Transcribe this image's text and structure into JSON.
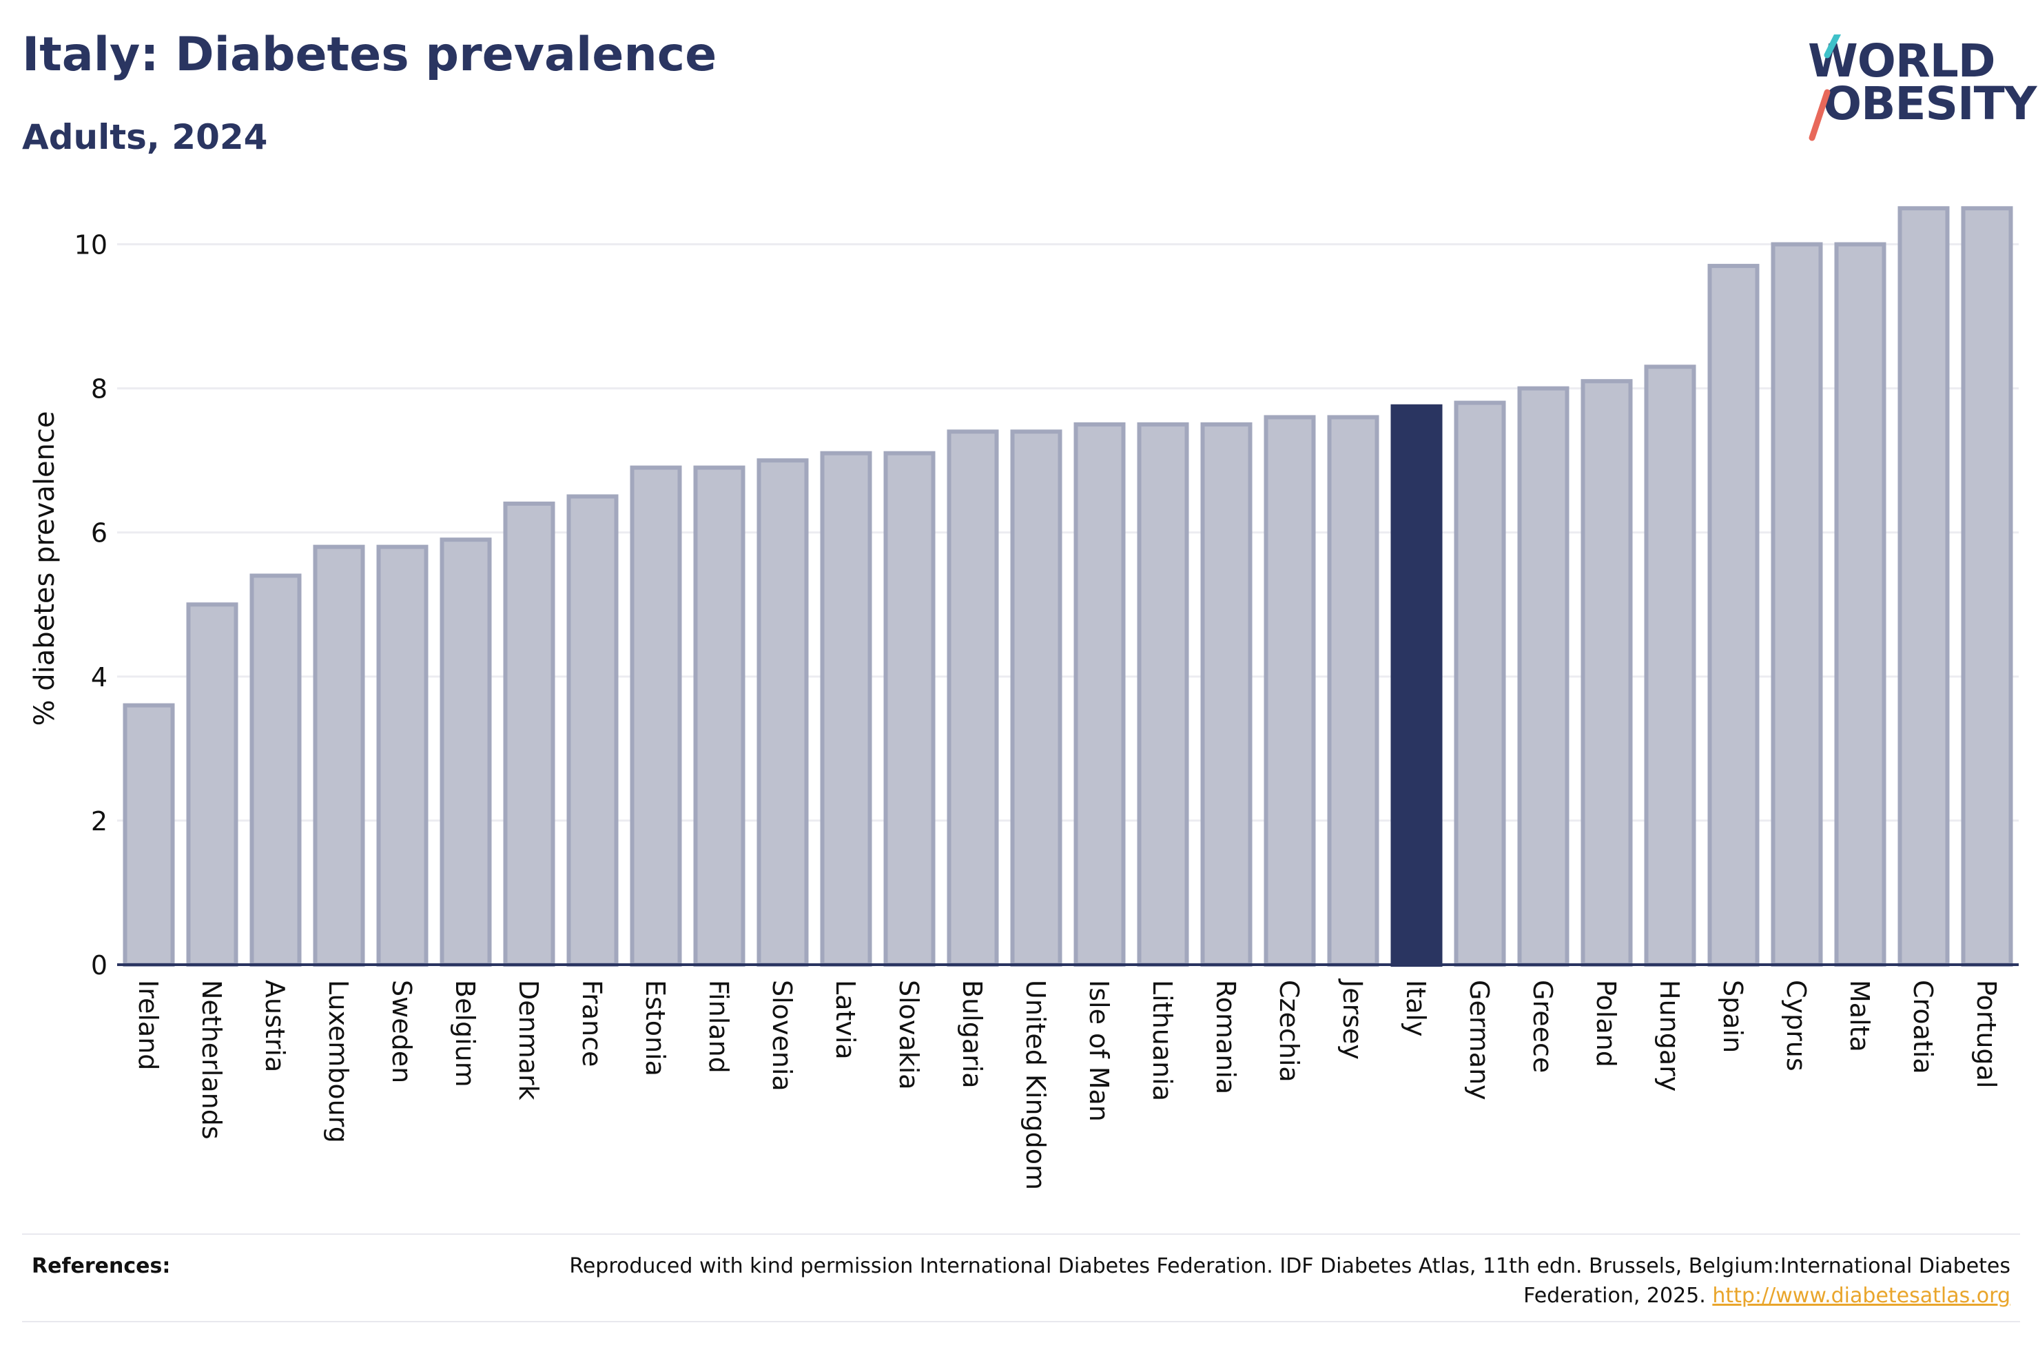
{
  "header": {
    "title": "Italy: Diabetes prevalence",
    "subtitle": "Adults, 2024"
  },
  "logo": {
    "line1": "WORLD",
    "line2": "OBESITY",
    "accent_colors": [
      "#3fc1c9",
      "#e8685a"
    ]
  },
  "chart_data": {
    "type": "bar",
    "categories": [
      "Ireland",
      "Netherlands",
      "Austria",
      "Luxembourg",
      "Sweden",
      "Belgium",
      "Denmark",
      "France",
      "Estonia",
      "Finland",
      "Slovenia",
      "Latvia",
      "Slovakia",
      "Bulgaria",
      "United Kingdom",
      "Isle of Man",
      "Lithuania",
      "Romania",
      "Czechia",
      "Jersey",
      "Italy",
      "Germany",
      "Greece",
      "Poland",
      "Hungary",
      "Spain",
      "Cyprus",
      "Malta",
      "Croatia",
      "Portugal"
    ],
    "values": [
      3.6,
      5.0,
      5.4,
      5.8,
      5.8,
      5.9,
      6.4,
      6.5,
      6.9,
      6.9,
      7.0,
      7.1,
      7.1,
      7.4,
      7.4,
      7.5,
      7.5,
      7.5,
      7.6,
      7.6,
      7.75,
      7.8,
      8.0,
      8.1,
      8.3,
      9.7,
      10.0,
      10.0,
      10.5,
      10.5
    ],
    "highlight": "Italy",
    "ylabel": "% diabetes prevalence",
    "xlabel": "",
    "ylim": [
      0,
      11
    ],
    "yticks": [
      0,
      2,
      4,
      6,
      8,
      10
    ],
    "grid": true,
    "colors": {
      "bar_fill": "#bec1cf",
      "bar_stroke": "#a2a7bd",
      "highlight_fill": "#2a3561",
      "grid": "#ececf1",
      "axis": "#2a3561"
    }
  },
  "references": {
    "label": "References:",
    "text": "Reproduced with kind permission International Diabetes Federation. IDF Diabetes Atlas, 11th edn. Brussels, Belgium:International Diabetes Federation, 2025.",
    "link": "http://www.diabetesatlas.org"
  }
}
